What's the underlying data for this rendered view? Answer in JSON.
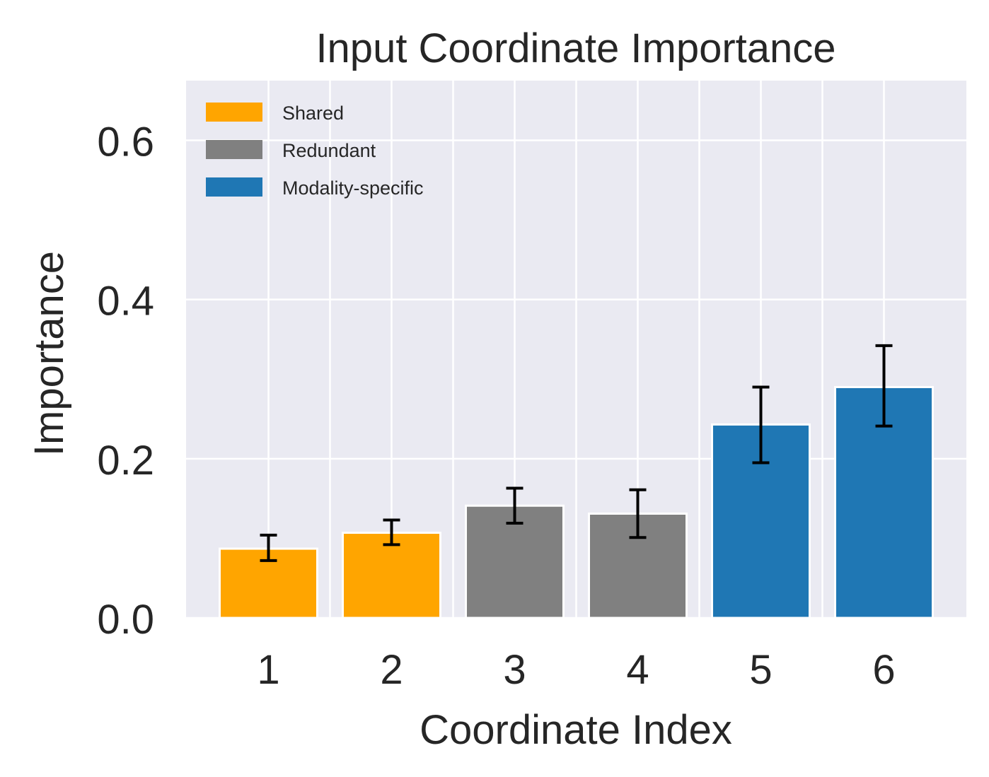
{
  "chart_data": {
    "type": "bar",
    "title": "Input Coordinate Importance",
    "xlabel": "Coordinate Index",
    "ylabel": "Importance",
    "categories": [
      "1",
      "2",
      "3",
      "4",
      "5",
      "6"
    ],
    "values": [
      0.087,
      0.107,
      0.141,
      0.131,
      0.243,
      0.29
    ],
    "error": [
      [
        0.072,
        0.104
      ],
      [
        0.092,
        0.123
      ],
      [
        0.119,
        0.163
      ],
      [
        0.101,
        0.161
      ],
      [
        0.195,
        0.29
      ],
      [
        0.241,
        0.342
      ]
    ],
    "bar_groups": [
      "Shared",
      "Shared",
      "Redundant",
      "Redundant",
      "Modality-specific",
      "Modality-specific"
    ],
    "ylim": [
      0,
      0.675
    ],
    "yticks": [
      0.0,
      0.2,
      0.4,
      0.6
    ],
    "ytick_labels": [
      "0.0",
      "0.2",
      "0.4",
      "0.6"
    ],
    "grid": true,
    "legend_position": "top-left",
    "legend": [
      {
        "label": "Shared",
        "color": "#FFA500"
      },
      {
        "label": "Redundant",
        "color": "#808080"
      },
      {
        "label": "Modality-specific",
        "color": "#1F77B4"
      }
    ],
    "colors": {
      "plot_background": "#EAEAF2",
      "grid": "#FFFFFF",
      "text": "#262626",
      "error_bar": "#000000",
      "bar_edge": "#FFFFFF"
    }
  }
}
